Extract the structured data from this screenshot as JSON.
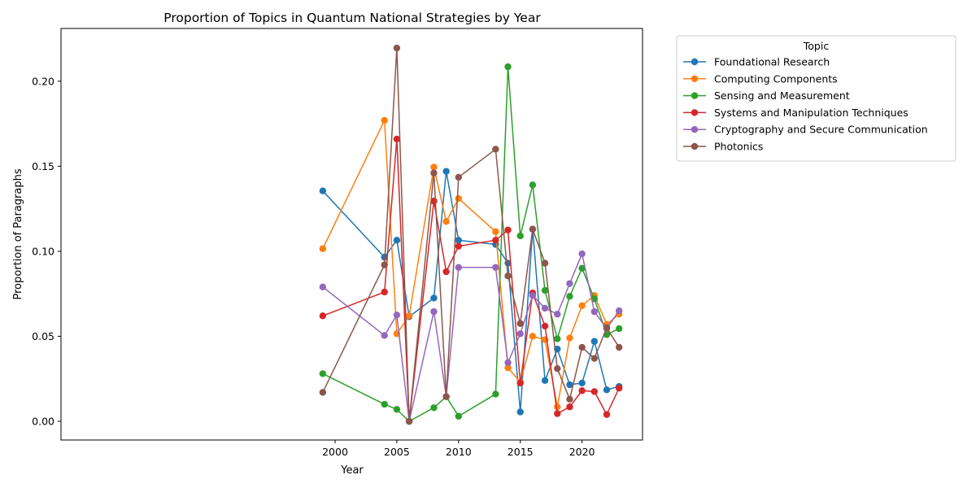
{
  "chart_data": {
    "type": "line",
    "title": "Proportion of Topics in Quantum National Strategies by Year",
    "xlabel": "Year",
    "ylabel": "Proportion of Paragraphs",
    "xlim": [
      1977.8,
      2024.9
    ],
    "ylim": [
      -0.011,
      0.231
    ],
    "xticks": [
      2000,
      2005,
      2010,
      2015,
      2020
    ],
    "yticks": [
      0.0,
      0.05,
      0.1,
      0.15,
      0.2
    ],
    "ytick_labels": [
      "0.00",
      "0.05",
      "0.10",
      "0.15",
      "0.20"
    ],
    "grid": false,
    "legend": {
      "title": "Topic",
      "placement": "outside-top-right"
    },
    "x": [
      1999,
      2004,
      2005,
      2006,
      2008,
      2009,
      2010,
      2013,
      2014,
      2015,
      2016,
      2017,
      2018,
      2019,
      2020,
      2021,
      2022,
      2023
    ],
    "series": [
      {
        "name": "Foundational Research",
        "color": "#1f77b4",
        "values": [
          0.1355,
          0.0965,
          0.1065,
          0.0615,
          0.0725,
          0.147,
          0.1065,
          0.104,
          0.093,
          0.0055,
          0.113,
          0.024,
          0.0425,
          0.0215,
          0.0225,
          0.047,
          0.0185,
          0.0205
        ]
      },
      {
        "name": "Computing Components",
        "color": "#ff7f0e",
        "values": [
          0.1015,
          0.177,
          0.0515,
          0.062,
          0.1495,
          0.1175,
          0.131,
          0.1115,
          0.0315,
          0.023,
          0.05,
          0.048,
          0.0085,
          0.049,
          0.068,
          0.074,
          0.057,
          0.063
        ]
      },
      {
        "name": "Sensing and Measurement",
        "color": "#2ca02c",
        "values": [
          0.028,
          0.01,
          0.007,
          0.0,
          0.008,
          0.0145,
          0.003,
          0.016,
          0.2085,
          0.109,
          0.139,
          0.077,
          0.0485,
          0.0735,
          0.09,
          0.072,
          0.051,
          0.0545
        ]
      },
      {
        "name": "Systems and Manipulation Techniques",
        "color": "#d62728",
        "values": [
          0.062,
          0.076,
          0.166,
          0.0,
          0.1295,
          0.088,
          0.103,
          0.1065,
          0.1125,
          0.0225,
          0.0755,
          0.056,
          0.0045,
          0.0085,
          0.018,
          0.0175,
          0.004,
          0.0195
        ]
      },
      {
        "name": "Cryptography and Secure Communication",
        "color": "#9467bd",
        "values": [
          0.079,
          0.0505,
          0.0625,
          0.0,
          0.0645,
          0.0145,
          0.0905,
          0.0905,
          0.0345,
          0.0515,
          0.074,
          0.0665,
          0.063,
          0.081,
          0.0985,
          0.0645,
          0.0545,
          0.065
        ]
      },
      {
        "name": "Photonics",
        "color": "#8c564b",
        "values": [
          0.017,
          0.092,
          0.2195,
          0.0,
          0.146,
          0.0145,
          0.1435,
          0.16,
          0.0855,
          0.0575,
          0.113,
          0.093,
          0.031,
          0.013,
          0.0435,
          0.037,
          0.055,
          0.0435
        ]
      }
    ]
  }
}
